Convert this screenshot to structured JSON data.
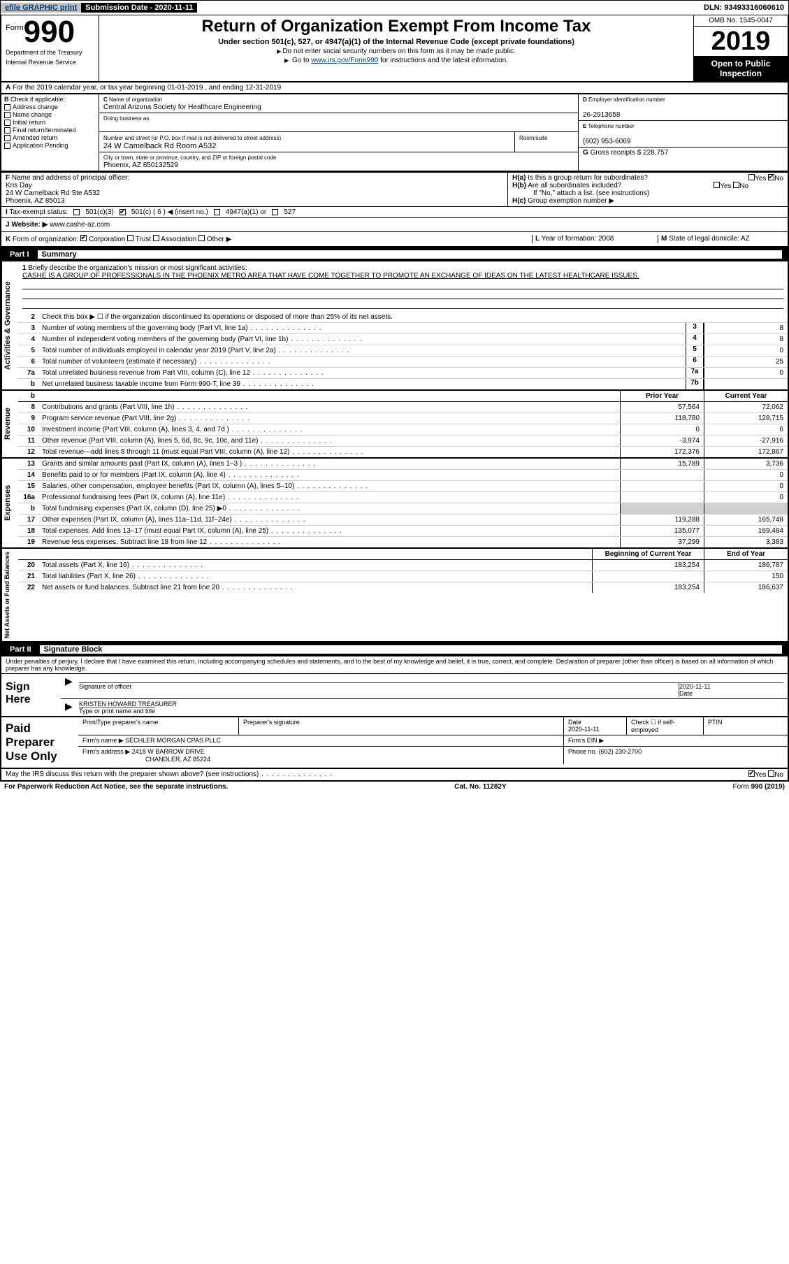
{
  "topbar": {
    "efile": "efile GRAPHIC print",
    "subdate_label": "Submission Date - 2020-11-11",
    "dln": "DLN: 93493316060610"
  },
  "header": {
    "form_prefix": "Form",
    "form_number": "990",
    "dept1": "Department of the Treasury",
    "dept2": "Internal Revenue Service",
    "title": "Return of Organization Exempt From Income Tax",
    "subtitle": "Under section 501(c), 527, or 4947(a)(1) of the Internal Revenue Code (except private foundations)",
    "note1": "Do not enter social security numbers on this form as it may be made public.",
    "note2a": "Go to ",
    "note2b": "www.irs.gov/Form990",
    "note2c": " for instructions and the latest information.",
    "omb": "OMB No. 1545-0047",
    "year": "2019",
    "open": "Open to Public Inspection"
  },
  "rowA": "For the 2019 calendar year, or tax year beginning 01-01-2019    , and ending 12-31-2019",
  "checkB": {
    "label": "Check if applicable:",
    "opts": [
      "Address change",
      "Name change",
      "Initial return",
      "Final return/terminated",
      "Amended return",
      "Application Pending"
    ]
  },
  "C": {
    "name_label": "Name of organization",
    "name": "Central Arizona Society for Healthcare Engineering",
    "dba_label": "Doing business as",
    "dba": "",
    "addr_label": "Number and street (or P.O. box if mail is not delivered to street address)",
    "addr": "24 W Camelback Rd Room A532",
    "room_label": "Room/suite",
    "city_label": "City or town, state or province, country, and ZIP or foreign postal code",
    "city": "Phoenix, AZ  850132529"
  },
  "D": {
    "label": "Employer identification number",
    "val": "26-2913658"
  },
  "E": {
    "label": "Telephone number",
    "val": "(602) 953-6069"
  },
  "G": {
    "label": "Gross receipts $",
    "val": "228,757"
  },
  "F": {
    "label": "Name and address of principal officer:",
    "name": "Kris Day",
    "addr1": "24 W Camelback Rd Ste A532",
    "addr2": "Phoenix, AZ  85013"
  },
  "H": {
    "a": "Is this a group return for subordinates?",
    "b": "Are all subordinates included?",
    "bnote": "If \"No,\" attach a list. (see instructions)",
    "c": "Group exemption number ▶"
  },
  "I": {
    "label": "Tax-exempt status:",
    "opts": [
      "501(c)(3)",
      "501(c) ( 6 ) ◀ (insert no.)",
      "4947(a)(1) or",
      "527"
    ]
  },
  "J": {
    "label": "Website: ▶",
    "val": "www.cashe-az.com"
  },
  "K": {
    "label": "Form of organization:",
    "opts": [
      "Corporation",
      "Trust",
      "Association",
      "Other ▶"
    ]
  },
  "L": {
    "label": "Year of formation:",
    "val": "2008"
  },
  "M": {
    "label": "State of legal domicile:",
    "val": "AZ"
  },
  "part1": {
    "label": "Part I",
    "title": "Summary"
  },
  "mission": {
    "q": "Briefly describe the organization's mission or most significant activities:",
    "text": "CASHE IS A GROUP OF PROFESSIONALS IN THE PHOENIX METRO AREA THAT HAVE COME TOGETHER TO PROMOTE AN EXCHANGE OF IDEAS ON THE LATEST HEALTHCARE ISSUES."
  },
  "gov_lines": [
    {
      "n": "2",
      "t": "Check this box ▶ ☐  if the organization discontinued its operations or disposed of more than 25% of its net assets."
    },
    {
      "n": "3",
      "t": "Number of voting members of the governing body (Part VI, line 1a)",
      "box": "3",
      "v": "8"
    },
    {
      "n": "4",
      "t": "Number of independent voting members of the governing body (Part VI, line 1b)",
      "box": "4",
      "v": "8"
    },
    {
      "n": "5",
      "t": "Total number of individuals employed in calendar year 2019 (Part V, line 2a)",
      "box": "5",
      "v": "0"
    },
    {
      "n": "6",
      "t": "Total number of volunteers (estimate if necessary)",
      "box": "6",
      "v": "25"
    },
    {
      "n": "7a",
      "t": "Total unrelated business revenue from Part VIII, column (C), line 12",
      "box": "7a",
      "v": "0"
    },
    {
      "n": "b",
      "t": "Net unrelated business taxable income from Form 990-T, line 39",
      "box": "7b",
      "v": ""
    }
  ],
  "cols": {
    "py": "Prior Year",
    "cy": "Current Year",
    "boy": "Beginning of Current Year",
    "eoy": "End of Year"
  },
  "rev_lines": [
    {
      "n": "8",
      "t": "Contributions and grants (Part VIII, line 1h)",
      "py": "57,564",
      "cy": "72,062"
    },
    {
      "n": "9",
      "t": "Program service revenue (Part VIII, line 2g)",
      "py": "118,780",
      "cy": "128,715"
    },
    {
      "n": "10",
      "t": "Investment income (Part VIII, column (A), lines 3, 4, and 7d )",
      "py": "6",
      "cy": "6"
    },
    {
      "n": "11",
      "t": "Other revenue (Part VIII, column (A), lines 5, 6d, 8c, 9c, 10c, and 11e)",
      "py": "-3,974",
      "cy": "-27,916"
    },
    {
      "n": "12",
      "t": "Total revenue—add lines 8 through 11 (must equal Part VIII, column (A), line 12)",
      "py": "172,376",
      "cy": "172,867"
    }
  ],
  "exp_lines": [
    {
      "n": "13",
      "t": "Grants and similar amounts paid (Part IX, column (A), lines 1–3 )",
      "py": "15,789",
      "cy": "3,736"
    },
    {
      "n": "14",
      "t": "Benefits paid to or for members (Part IX, column (A), line 4)",
      "py": "",
      "cy": "0"
    },
    {
      "n": "15",
      "t": "Salaries, other compensation, employee benefits (Part IX, column (A), lines 5–10)",
      "py": "",
      "cy": "0"
    },
    {
      "n": "16a",
      "t": "Professional fundraising fees (Part IX, column (A), line 11e)",
      "py": "",
      "cy": "0"
    },
    {
      "n": "b",
      "t": "Total fundraising expenses (Part IX, column (D), line 25) ▶0",
      "py": "GRAY",
      "cy": "GRAY"
    },
    {
      "n": "17",
      "t": "Other expenses (Part IX, column (A), lines 11a–11d, 11f–24e)",
      "py": "119,288",
      "cy": "165,748"
    },
    {
      "n": "18",
      "t": "Total expenses. Add lines 13–17 (must equal Part IX, column (A), line 25)",
      "py": "135,077",
      "cy": "169,484"
    },
    {
      "n": "19",
      "t": "Revenue less expenses. Subtract line 18 from line 12",
      "py": "37,299",
      "cy": "3,383"
    }
  ],
  "na_lines": [
    {
      "n": "20",
      "t": "Total assets (Part X, line 16)",
      "py": "183,254",
      "cy": "186,787"
    },
    {
      "n": "21",
      "t": "Total liabilities (Part X, line 26)",
      "py": "",
      "cy": "150"
    },
    {
      "n": "22",
      "t": "Net assets or fund balances. Subtract line 21 from line 20",
      "py": "183,254",
      "cy": "186,637"
    }
  ],
  "part2": {
    "label": "Part II",
    "title": "Signature Block"
  },
  "sig": {
    "decl": "Under penalties of perjury, I declare that I have examined this return, including accompanying schedules and statements, and to the best of my knowledge and belief, it is true, correct, and complete. Declaration of preparer (other than officer) is based on all information of which preparer has any knowledge.",
    "sign_here": "Sign Here",
    "sig_officer": "Signature of officer",
    "date": "2020-11-11",
    "date_lbl": "Date",
    "name": "KRISTEN HOWARD  TREASURER",
    "name_lbl": "Type or print name and title"
  },
  "paid": {
    "label": "Paid Preparer Use Only",
    "h1": "Print/Type preparer's name",
    "h2": "Preparer's signature",
    "h3": "Date",
    "h3v": "2020-11-11",
    "h4": "Check ☐  if self-employed",
    "h5": "PTIN",
    "firm_lbl": "Firm's name    ▶",
    "firm": "SECHLER MORGAN CPAS PLLC",
    "ein_lbl": "Firm's EIN ▶",
    "addr_lbl": "Firm's address ▶",
    "addr1": "2418 W BARROW DRIVE",
    "addr2": "CHANDLER, AZ  85224",
    "phone_lbl": "Phone no.",
    "phone": "(602) 230-2700"
  },
  "discuss": "May the IRS discuss this return with the preparer shown above? (see instructions)",
  "footer": {
    "left": "For Paperwork Reduction Act Notice, see the separate instructions.",
    "mid": "Cat. No. 11282Y",
    "right": "Form 990 (2019)"
  },
  "vlabels": {
    "gov": "Activities & Governance",
    "rev": "Revenue",
    "exp": "Expenses",
    "na": "Net Assets or Fund Balances"
  }
}
